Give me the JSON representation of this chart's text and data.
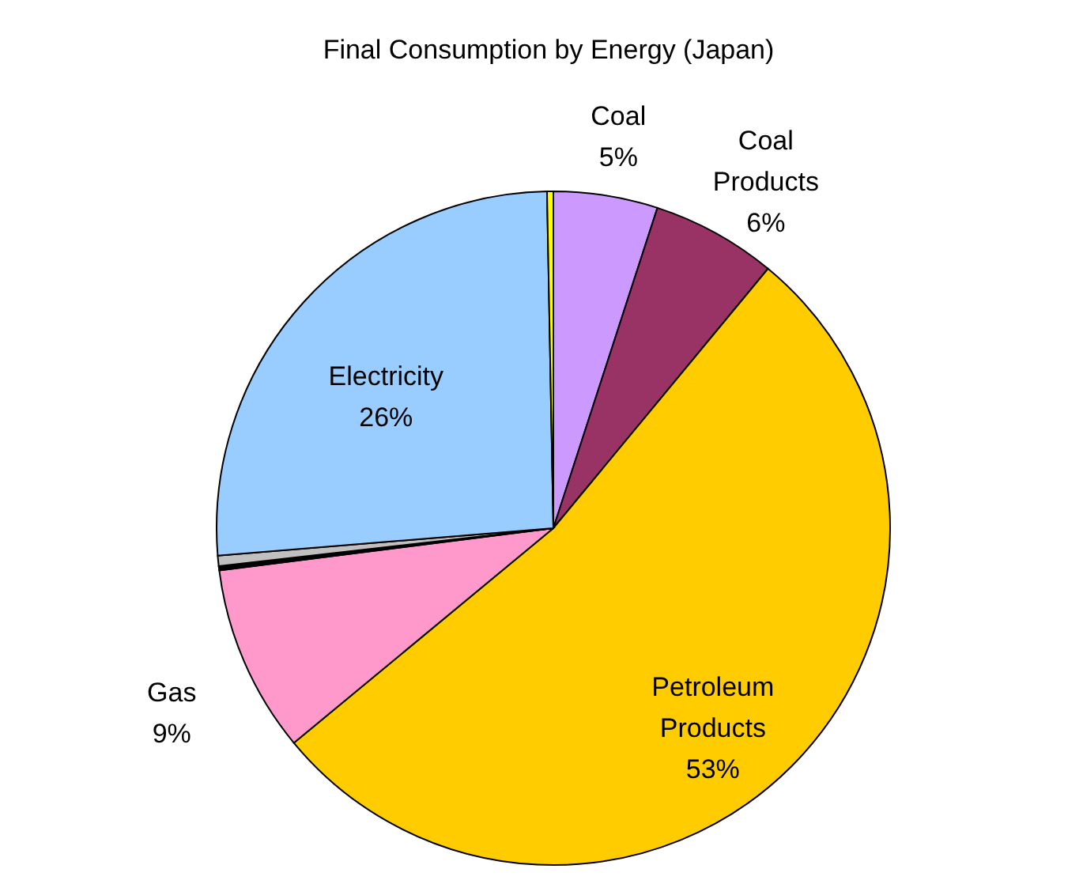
{
  "chart_data": {
    "type": "pie",
    "title": "Final Consumption by Energy (Japan)",
    "categories": [
      "Coal",
      "Coal Products",
      "Petroleum Products",
      "Gas",
      null,
      null,
      "Electricity",
      null
    ],
    "values": [
      5,
      6,
      53,
      9,
      0.2,
      0.5,
      26,
      0.3
    ],
    "value_labels": [
      "5%",
      "6%",
      "53%",
      "9%",
      null,
      null,
      "26%",
      null
    ],
    "colors": [
      "#cc99ff",
      "#993366",
      "#ffcc00",
      "#ff99cc",
      "#000000",
      "#c0c0c0",
      "#99ccff",
      "#ffff00"
    ],
    "legend": false
  }
}
